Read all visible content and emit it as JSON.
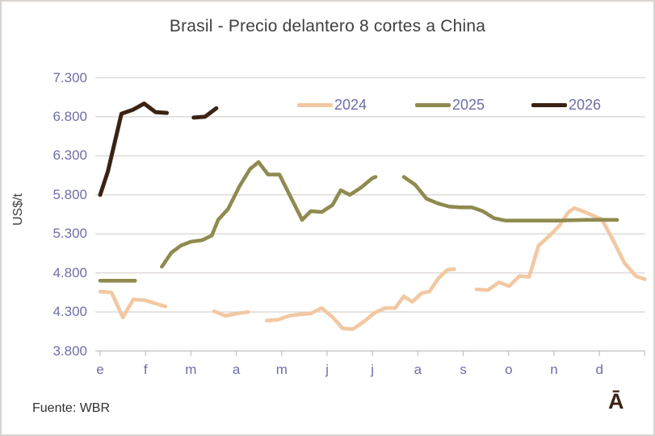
{
  "footer": {
    "source": "Fuente: WBR",
    "logo_glyph": "Ā"
  },
  "colors": {
    "series_2024": "#f2c8a2",
    "series_2025": "#8f8b50",
    "series_2026": "#3b2313",
    "axis_text": "#6e6ea8",
    "title_text": "#404040",
    "gridline": "#d9d5d3",
    "axis_line": "#c6c2c0",
    "background": "#ffffff"
  },
  "chart_data": {
    "type": "line",
    "title": "Brasil - Precio delantero 8 cortes a China",
    "ylabel": "US$/t",
    "grid": true,
    "legend_position": "top-right-inside",
    "y_axis": {
      "min": 3800,
      "max": 7300,
      "step": 500,
      "tick_labels": [
        "3.800",
        "4.300",
        "4.800",
        "5.300",
        "5.800",
        "6.300",
        "6.800",
        "7.300"
      ]
    },
    "x_axis": {
      "tick_labels": [
        "e",
        "f",
        "m",
        "a",
        "m",
        "j",
        "j",
        "a",
        "s",
        "o",
        "n",
        "d"
      ],
      "note": "x in series points = fractional month index, 0 = start of January (e), 12 = end of December"
    },
    "series": [
      {
        "name": "2024",
        "color": "#f2c8a2",
        "stroke_width": 4.6,
        "segments": [
          [
            [
              0,
              4560
            ],
            [
              0.25,
              4550
            ],
            [
              0.5,
              4230
            ],
            [
              0.73,
              4460
            ],
            [
              0.98,
              4450
            ],
            [
              1.21,
              4410
            ],
            [
              1.44,
              4370
            ]
          ],
          [
            [
              2.51,
              4310
            ],
            [
              2.76,
              4250
            ],
            [
              3.01,
              4280
            ],
            [
              3.26,
              4300
            ]
          ],
          [
            [
              3.67,
              4190
            ],
            [
              3.91,
              4200
            ],
            [
              4.16,
              4250
            ],
            [
              4.41,
              4270
            ],
            [
              4.64,
              4280
            ],
            [
              4.88,
              4350
            ],
            [
              5.11,
              4240
            ],
            [
              5.34,
              4090
            ],
            [
              5.57,
              4080
            ],
            [
              5.82,
              4180
            ],
            [
              6.05,
              4290
            ],
            [
              6.28,
              4350
            ],
            [
              6.5,
              4350
            ],
            [
              6.69,
              4500
            ],
            [
              6.88,
              4430
            ],
            [
              7.08,
              4540
            ],
            [
              7.25,
              4560
            ],
            [
              7.45,
              4730
            ],
            [
              7.65,
              4840
            ],
            [
              7.8,
              4850
            ]
          ],
          [
            [
              8.29,
              4590
            ],
            [
              8.54,
              4580
            ],
            [
              8.79,
              4680
            ],
            [
              9.01,
              4630
            ],
            [
              9.24,
              4760
            ],
            [
              9.45,
              4750
            ],
            [
              9.66,
              5150
            ],
            [
              9.89,
              5270
            ],
            [
              10.11,
              5400
            ],
            [
              10.32,
              5580
            ],
            [
              10.45,
              5630
            ],
            [
              10.68,
              5580
            ],
            [
              10.91,
              5520
            ],
            [
              11.05,
              5490
            ],
            [
              11.3,
              5220
            ],
            [
              11.55,
              4930
            ],
            [
              11.8,
              4760
            ],
            [
              12,
              4720
            ]
          ]
        ]
      },
      {
        "name": "2025",
        "color": "#8f8b50",
        "stroke_width": 4.6,
        "segments": [
          [
            [
              0,
              4700
            ],
            [
              0.25,
              4700
            ],
            [
              0.5,
              4700
            ],
            [
              0.77,
              4700
            ]
          ],
          [
            [
              1.36,
              4880
            ],
            [
              1.57,
              5060
            ],
            [
              1.78,
              5150
            ],
            [
              2,
              5200
            ],
            [
              2.25,
              5220
            ],
            [
              2.46,
              5280
            ],
            [
              2.6,
              5480
            ],
            [
              2.82,
              5620
            ],
            [
              3.06,
              5900
            ],
            [
              3.3,
              6130
            ],
            [
              3.49,
              6220
            ],
            [
              3.7,
              6060
            ],
            [
              3.95,
              6060
            ],
            [
              4.2,
              5770
            ],
            [
              4.45,
              5480
            ],
            [
              4.64,
              5590
            ],
            [
              4.88,
              5580
            ],
            [
              5.12,
              5670
            ],
            [
              5.3,
              5860
            ],
            [
              5.5,
              5800
            ],
            [
              5.74,
              5890
            ],
            [
              5.99,
              6010
            ],
            [
              6.07,
              6030
            ]
          ],
          [
            [
              6.69,
              6030
            ],
            [
              6.94,
              5930
            ],
            [
              7.19,
              5750
            ],
            [
              7.44,
              5690
            ],
            [
              7.69,
              5650
            ],
            [
              7.94,
              5640
            ],
            [
              8.19,
              5640
            ],
            [
              8.43,
              5590
            ],
            [
              8.68,
              5500
            ],
            [
              8.93,
              5470
            ],
            [
              9.5,
              5470
            ],
            [
              10.1,
              5470
            ],
            [
              10.7,
              5480
            ],
            [
              11.39,
              5480
            ]
          ]
        ]
      },
      {
        "name": "2026",
        "color": "#3b2313",
        "stroke_width": 5,
        "segments": [
          [
            [
              0,
              5800
            ],
            [
              0.17,
              6100
            ],
            [
              0.47,
              6840
            ],
            [
              0.72,
              6890
            ],
            [
              0.97,
              6970
            ],
            [
              1.22,
              6860
            ],
            [
              1.47,
              6850
            ]
          ],
          [
            [
              2.06,
              6790
            ],
            [
              2.31,
              6800
            ],
            [
              2.56,
              6910
            ]
          ]
        ]
      }
    ]
  }
}
